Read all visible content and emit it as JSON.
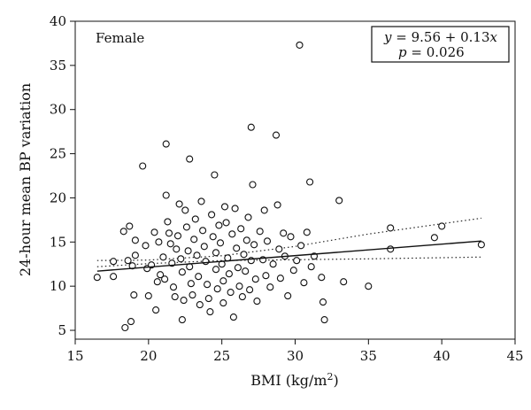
{
  "chart_data": {
    "type": "scatter",
    "title": "",
    "panel_label": "Female",
    "xlabel": "BMI (kg/m",
    "xlabel_sup": "2",
    "xlabel_close": ")",
    "ylabel": "24-hour mean BP variation",
    "xlim": [
      15,
      45
    ],
    "ylim": [
      4,
      40
    ],
    "xticks": [
      15,
      20,
      25,
      30,
      35,
      40,
      45
    ],
    "yticks": [
      5,
      10,
      15,
      20,
      25,
      30,
      35,
      40
    ],
    "grid": false,
    "marker": "open-circle",
    "annotation": {
      "equation_lhs": "y",
      "equation_rhs": " = 9.56 + 0.13",
      "equation_var": "x",
      "p_lhs": "p",
      "p_rhs": " = 0.026"
    },
    "fit": {
      "intercept": 9.56,
      "slope": 0.13,
      "x_range": [
        16.5,
        42.7
      ]
    },
    "ci_lower": [
      [
        16.5,
        12.2
      ],
      [
        20,
        12.55
      ],
      [
        25,
        12.9
      ],
      [
        30,
        13.0
      ],
      [
        35,
        13.1
      ],
      [
        42.7,
        13.3
      ]
    ],
    "ci_upper": [
      [
        16.5,
        12.9
      ],
      [
        20,
        12.95
      ],
      [
        25,
        13.45
      ],
      [
        30,
        14.5
      ],
      [
        35,
        15.9
      ],
      [
        42.7,
        17.7
      ]
    ],
    "points": [
      [
        16.5,
        11.0
      ],
      [
        17.6,
        11.1
      ],
      [
        17.6,
        12.8
      ],
      [
        18.4,
        5.3
      ],
      [
        18.8,
        6.0
      ],
      [
        18.7,
        16.8
      ],
      [
        18.3,
        16.2
      ],
      [
        18.6,
        12.9
      ],
      [
        18.9,
        12.3
      ],
      [
        19.0,
        9.0
      ],
      [
        19.1,
        13.5
      ],
      [
        19.1,
        15.2
      ],
      [
        19.6,
        23.6
      ],
      [
        19.9,
        12.0
      ],
      [
        19.8,
        14.6
      ],
      [
        20.2,
        12.4
      ],
      [
        20.0,
        8.9
      ],
      [
        20.5,
        7.3
      ],
      [
        20.6,
        10.5
      ],
      [
        20.4,
        16.1
      ],
      [
        20.7,
        15.0
      ],
      [
        20.8,
        11.3
      ],
      [
        21.0,
        13.3
      ],
      [
        21.1,
        10.8
      ],
      [
        21.2,
        26.1
      ],
      [
        21.2,
        20.3
      ],
      [
        21.3,
        17.3
      ],
      [
        21.4,
        16.0
      ],
      [
        21.5,
        14.8
      ],
      [
        21.6,
        12.6
      ],
      [
        21.7,
        9.9
      ],
      [
        21.8,
        8.8
      ],
      [
        21.9,
        14.2
      ],
      [
        22.1,
        19.3
      ],
      [
        22.0,
        15.7
      ],
      [
        22.2,
        13.1
      ],
      [
        22.3,
        11.6
      ],
      [
        22.4,
        8.4
      ],
      [
        22.3,
        6.2
      ],
      [
        22.5,
        18.6
      ],
      [
        22.6,
        16.7
      ],
      [
        22.7,
        14.0
      ],
      [
        22.8,
        24.4
      ],
      [
        22.8,
        12.2
      ],
      [
        22.9,
        10.3
      ],
      [
        23.0,
        9.0
      ],
      [
        23.1,
        15.3
      ],
      [
        23.2,
        17.6
      ],
      [
        23.3,
        13.5
      ],
      [
        23.4,
        11.1
      ],
      [
        23.5,
        7.9
      ],
      [
        23.6,
        19.6
      ],
      [
        23.7,
        16.3
      ],
      [
        23.8,
        14.5
      ],
      [
        23.9,
        12.8
      ],
      [
        24.0,
        10.2
      ],
      [
        24.1,
        8.6
      ],
      [
        24.2,
        7.1
      ],
      [
        24.3,
        18.1
      ],
      [
        24.4,
        15.6
      ],
      [
        24.5,
        22.6
      ],
      [
        24.6,
        13.8
      ],
      [
        24.6,
        11.9
      ],
      [
        24.7,
        9.7
      ],
      [
        24.8,
        16.9
      ],
      [
        24.9,
        14.9
      ],
      [
        25.0,
        12.5
      ],
      [
        25.1,
        10.6
      ],
      [
        25.1,
        8.1
      ],
      [
        25.2,
        19.0
      ],
      [
        25.3,
        17.2
      ],
      [
        25.4,
        13.2
      ],
      [
        25.5,
        11.4
      ],
      [
        25.6,
        9.3
      ],
      [
        25.7,
        15.9
      ],
      [
        25.8,
        6.5
      ],
      [
        25.9,
        18.8
      ],
      [
        26.0,
        14.3
      ],
      [
        26.1,
        12.1
      ],
      [
        26.2,
        10.0
      ],
      [
        26.3,
        16.5
      ],
      [
        26.4,
        8.8
      ],
      [
        26.5,
        13.6
      ],
      [
        26.6,
        11.7
      ],
      [
        26.7,
        15.2
      ],
      [
        26.8,
        17.8
      ],
      [
        26.9,
        9.6
      ],
      [
        27.0,
        28.0
      ],
      [
        27.1,
        21.5
      ],
      [
        27.0,
        12.9
      ],
      [
        27.2,
        14.7
      ],
      [
        27.3,
        10.8
      ],
      [
        27.4,
        8.3
      ],
      [
        27.6,
        16.2
      ],
      [
        27.8,
        13.0
      ],
      [
        27.9,
        18.6
      ],
      [
        28.0,
        11.2
      ],
      [
        28.1,
        15.1
      ],
      [
        28.3,
        9.9
      ],
      [
        28.5,
        12.5
      ],
      [
        28.7,
        27.1
      ],
      [
        28.8,
        19.2
      ],
      [
        28.9,
        14.2
      ],
      [
        29.0,
        10.9
      ],
      [
        29.2,
        16.0
      ],
      [
        29.3,
        13.4
      ],
      [
        29.5,
        8.9
      ],
      [
        29.7,
        15.6
      ],
      [
        29.9,
        11.8
      ],
      [
        30.1,
        12.9
      ],
      [
        30.3,
        37.3
      ],
      [
        30.4,
        14.6
      ],
      [
        30.6,
        10.4
      ],
      [
        30.8,
        16.1
      ],
      [
        31.0,
        21.8
      ],
      [
        31.1,
        12.2
      ],
      [
        31.3,
        13.4
      ],
      [
        31.8,
        11.0
      ],
      [
        31.9,
        8.2
      ],
      [
        32.0,
        6.2
      ],
      [
        33.0,
        19.7
      ],
      [
        33.3,
        10.5
      ],
      [
        35.0,
        10.0
      ],
      [
        36.5,
        16.6
      ],
      [
        36.5,
        14.2
      ],
      [
        39.5,
        15.5
      ],
      [
        40.0,
        16.8
      ],
      [
        42.7,
        14.7
      ]
    ]
  }
}
